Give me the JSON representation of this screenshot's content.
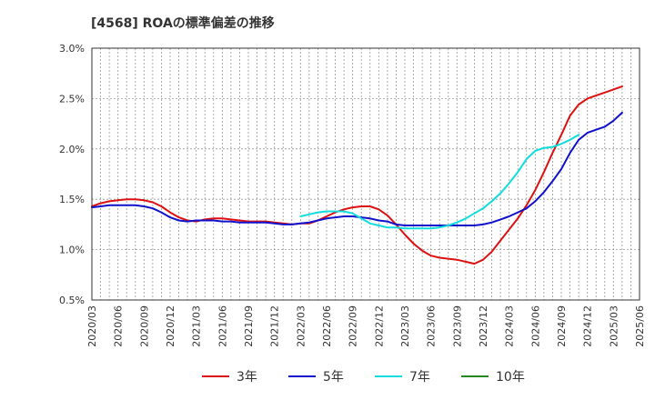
{
  "chart_data": {
    "type": "line",
    "title": "[4568]  ROAの標準偏差の推移",
    "xlabel": "",
    "ylabel": "",
    "ylim": [
      0.5,
      3.0
    ],
    "yticks": [
      "3.0%",
      "2.5%",
      "2.0%",
      "1.5%",
      "1.0%",
      "0.5%"
    ],
    "ytick_values": [
      3.0,
      2.5,
      2.0,
      1.5,
      1.0,
      0.5
    ],
    "xticks": [
      "2020/03",
      "2020/06",
      "2020/09",
      "2020/12",
      "2021/03",
      "2021/06",
      "2021/09",
      "2021/12",
      "2022/03",
      "2022/06",
      "2022/09",
      "2022/12",
      "2023/03",
      "2023/06",
      "2023/09",
      "2023/12",
      "2024/03",
      "2024/06",
      "2024/09",
      "2024/12",
      "2025/03",
      "2025/06"
    ],
    "grid": true,
    "legend_position": "bottom",
    "series": [
      {
        "name": "3年",
        "color": "#dd1111",
        "start": "2020/03",
        "values": [
          1.43,
          1.46,
          1.48,
          1.49,
          1.5,
          1.5,
          1.49,
          1.47,
          1.43,
          1.37,
          1.32,
          1.29,
          1.28,
          1.3,
          1.31,
          1.31,
          1.3,
          1.29,
          1.28,
          1.28,
          1.28,
          1.27,
          1.26,
          1.25,
          1.26,
          1.26,
          1.29,
          1.33,
          1.37,
          1.4,
          1.42,
          1.43,
          1.43,
          1.4,
          1.34,
          1.25,
          1.15,
          1.06,
          0.99,
          0.94,
          0.92,
          0.91,
          0.9,
          0.88,
          0.86,
          0.9,
          0.98,
          1.09,
          1.2,
          1.31,
          1.44,
          1.59,
          1.77,
          1.96,
          2.14,
          2.33,
          2.44,
          2.5,
          2.53,
          2.56,
          2.59,
          2.62
        ]
      },
      {
        "name": "5年",
        "color": "#1111cc",
        "start": "2020/03",
        "values": [
          1.42,
          1.43,
          1.44,
          1.44,
          1.44,
          1.44,
          1.43,
          1.41,
          1.37,
          1.32,
          1.29,
          1.28,
          1.29,
          1.29,
          1.29,
          1.28,
          1.28,
          1.27,
          1.27,
          1.27,
          1.27,
          1.26,
          1.25,
          1.25,
          1.26,
          1.27,
          1.29,
          1.31,
          1.32,
          1.33,
          1.33,
          1.32,
          1.31,
          1.29,
          1.28,
          1.25,
          1.24,
          1.24,
          1.24,
          1.24,
          1.24,
          1.24,
          1.24,
          1.24,
          1.24,
          1.25,
          1.27,
          1.3,
          1.33,
          1.37,
          1.41,
          1.48,
          1.57,
          1.68,
          1.8,
          1.96,
          2.09,
          2.16,
          2.19,
          2.22,
          2.28,
          2.36
        ]
      },
      {
        "name": "7年",
        "color": "#11dddd",
        "start": "2022/03",
        "values": [
          1.33,
          1.35,
          1.37,
          1.38,
          1.38,
          1.38,
          1.36,
          1.31,
          1.26,
          1.24,
          1.22,
          1.22,
          1.21,
          1.21,
          1.21,
          1.21,
          1.22,
          1.24,
          1.27,
          1.31,
          1.36,
          1.41,
          1.48,
          1.56,
          1.66,
          1.77,
          1.9,
          1.98,
          2.01,
          2.02,
          2.05,
          2.09,
          2.14
        ]
      },
      {
        "name": "10年",
        "color": "#228822",
        "start": "2022/03",
        "values": []
      }
    ]
  }
}
